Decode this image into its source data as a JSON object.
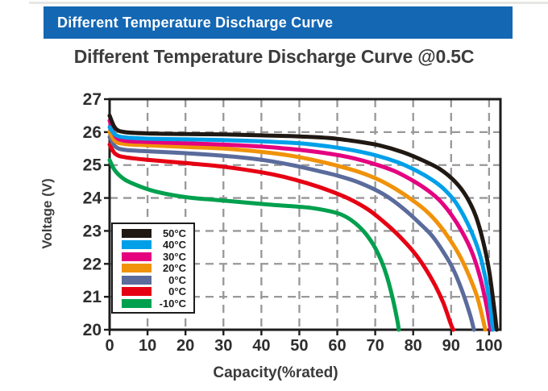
{
  "banner": {
    "title": "Different Temperature Discharge Curve",
    "bg_color": "#1467b3",
    "text_color": "#ffffff"
  },
  "page": {
    "title": "Different Temperature Discharge Curve @0.5C"
  },
  "chart_data": {
    "type": "line",
    "title": "Different Temperature Discharge Curve @0.5C",
    "xlabel": "Capacity(%rated)",
    "ylabel": "Voltage (V)",
    "xlim": [
      0,
      103
    ],
    "ylim": [
      20,
      27
    ],
    "xticks": [
      0,
      10,
      20,
      30,
      40,
      50,
      60,
      70,
      80,
      90,
      100
    ],
    "yticks": [
      20,
      21,
      22,
      23,
      24,
      25,
      26,
      27
    ],
    "grid": {
      "show": true,
      "style": "dashed",
      "color": "#98989a",
      "x_lines": [
        10,
        20,
        30,
        40,
        50,
        60,
        70,
        80,
        90,
        100
      ],
      "y_lines": [
        21,
        22,
        23,
        24,
        25,
        26
      ]
    },
    "axis_color": "#1c1c1c",
    "legend_position": "lower-left",
    "series": [
      {
        "name": "50°C",
        "color": "#1f1813",
        "points": [
          [
            0,
            26.5
          ],
          [
            1.5,
            26.12
          ],
          [
            4,
            26.0
          ],
          [
            10,
            25.96
          ],
          [
            20,
            25.94
          ],
          [
            30,
            25.93
          ],
          [
            40,
            25.9
          ],
          [
            50,
            25.87
          ],
          [
            58,
            25.82
          ],
          [
            65,
            25.72
          ],
          [
            71,
            25.6
          ],
          [
            77,
            25.4
          ],
          [
            82,
            25.17
          ],
          [
            87,
            24.88
          ],
          [
            91,
            24.5
          ],
          [
            94,
            24.05
          ],
          [
            96.5,
            23.45
          ],
          [
            98.5,
            22.65
          ],
          [
            100,
            21.8
          ],
          [
            101.3,
            20.7
          ],
          [
            102,
            20
          ]
        ]
      },
      {
        "name": "40°C",
        "color": "#00a0e9",
        "points": [
          [
            0,
            26.15
          ],
          [
            1.5,
            25.92
          ],
          [
            4,
            25.84
          ],
          [
            10,
            25.8
          ],
          [
            20,
            25.78
          ],
          [
            30,
            25.76
          ],
          [
            40,
            25.72
          ],
          [
            50,
            25.66
          ],
          [
            58,
            25.56
          ],
          [
            64,
            25.45
          ],
          [
            70,
            25.3
          ],
          [
            76,
            25.08
          ],
          [
            81,
            24.82
          ],
          [
            85,
            24.55
          ],
          [
            88,
            24.28
          ],
          [
            91,
            23.9
          ],
          [
            93.5,
            23.42
          ],
          [
            96,
            22.8
          ],
          [
            98,
            22.1
          ],
          [
            99.8,
            21.1
          ],
          [
            101,
            20
          ]
        ]
      },
      {
        "name": "30°C",
        "color": "#e4007f",
        "points": [
          [
            0,
            26.35
          ],
          [
            1.5,
            25.88
          ],
          [
            4,
            25.74
          ],
          [
            10,
            25.7
          ],
          [
            20,
            25.66
          ],
          [
            30,
            25.62
          ],
          [
            40,
            25.56
          ],
          [
            50,
            25.46
          ],
          [
            57,
            25.36
          ],
          [
            63,
            25.24
          ],
          [
            69,
            25.06
          ],
          [
            75,
            24.82
          ],
          [
            80,
            24.52
          ],
          [
            84,
            24.22
          ],
          [
            87,
            23.92
          ],
          [
            90,
            23.5
          ],
          [
            93,
            22.95
          ],
          [
            95.5,
            22.35
          ],
          [
            97.5,
            21.65
          ],
          [
            99.3,
            20.75
          ],
          [
            100.4,
            20
          ]
        ]
      },
      {
        "name": "20°C",
        "color": "#f0920a",
        "points": [
          [
            0,
            26.0
          ],
          [
            1.5,
            25.72
          ],
          [
            4,
            25.64
          ],
          [
            10,
            25.6
          ],
          [
            20,
            25.55
          ],
          [
            30,
            25.5
          ],
          [
            40,
            25.4
          ],
          [
            48,
            25.28
          ],
          [
            55,
            25.12
          ],
          [
            61,
            24.95
          ],
          [
            66,
            24.78
          ],
          [
            71,
            24.55
          ],
          [
            75,
            24.3
          ],
          [
            79,
            24.0
          ],
          [
            83,
            23.65
          ],
          [
            86,
            23.3
          ],
          [
            89,
            22.85
          ],
          [
            92,
            22.3
          ],
          [
            94.5,
            21.7
          ],
          [
            97,
            20.95
          ],
          [
            99,
            20
          ]
        ]
      },
      {
        "name": "0°C",
        "color": "#5a6b9c",
        "points": [
          [
            0,
            25.85
          ],
          [
            1.5,
            25.56
          ],
          [
            4,
            25.46
          ],
          [
            10,
            25.42
          ],
          [
            20,
            25.36
          ],
          [
            30,
            25.28
          ],
          [
            40,
            25.16
          ],
          [
            48,
            25.0
          ],
          [
            55,
            24.82
          ],
          [
            60,
            24.68
          ],
          [
            65,
            24.5
          ],
          [
            70,
            24.25
          ],
          [
            74,
            23.98
          ],
          [
            78,
            23.62
          ],
          [
            82,
            23.2
          ],
          [
            85,
            22.85
          ],
          [
            88,
            22.35
          ],
          [
            90.5,
            21.85
          ],
          [
            93,
            21.15
          ],
          [
            95,
            20.45
          ],
          [
            96,
            20
          ]
        ]
      },
      {
        "name": "0°C",
        "color": "#e60013",
        "points": [
          [
            0,
            25.62
          ],
          [
            1.5,
            25.34
          ],
          [
            4,
            25.24
          ],
          [
            10,
            25.16
          ],
          [
            20,
            25.06
          ],
          [
            30,
            24.95
          ],
          [
            40,
            24.78
          ],
          [
            46,
            24.64
          ],
          [
            52,
            24.45
          ],
          [
            58,
            24.22
          ],
          [
            63,
            23.98
          ],
          [
            68,
            23.66
          ],
          [
            72,
            23.3
          ],
          [
            76,
            22.88
          ],
          [
            80,
            22.38
          ],
          [
            83,
            21.9
          ],
          [
            86,
            21.3
          ],
          [
            88,
            20.8
          ],
          [
            90,
            20.15
          ],
          [
            90.6,
            20
          ]
        ]
      },
      {
        "name": "-10°C",
        "color": "#00a04e",
        "points": [
          [
            0,
            25.15
          ],
          [
            1.5,
            24.82
          ],
          [
            4,
            24.56
          ],
          [
            8,
            24.35
          ],
          [
            12,
            24.2
          ],
          [
            17,
            24.08
          ],
          [
            22,
            24.0
          ],
          [
            28,
            23.94
          ],
          [
            35,
            23.87
          ],
          [
            42,
            23.8
          ],
          [
            48,
            23.75
          ],
          [
            53,
            23.7
          ],
          [
            58,
            23.6
          ],
          [
            61,
            23.5
          ],
          [
            64,
            23.3
          ],
          [
            67,
            22.98
          ],
          [
            69.5,
            22.58
          ],
          [
            71.5,
            22.12
          ],
          [
            73,
            21.65
          ],
          [
            74.5,
            21.0
          ],
          [
            75.8,
            20.3
          ],
          [
            76.2,
            20
          ]
        ]
      }
    ]
  }
}
